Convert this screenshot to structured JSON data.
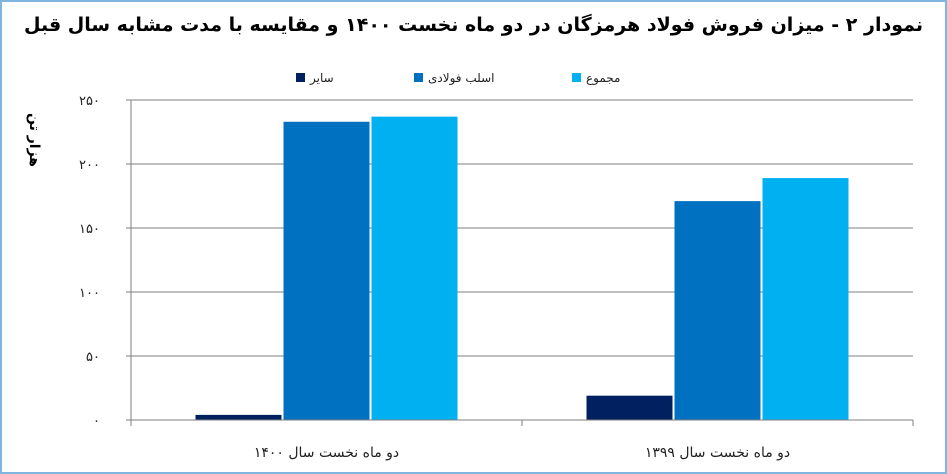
{
  "chart_data": {
    "type": "bar",
    "title": "نمودار ۲ - میزان فروش فولاد هرمزگان در دو ماه نخست ۱۴۰۰ و مقایسه با مدت مشابه سال قبل",
    "ylabel": "هزار تن",
    "xlabel": "",
    "ylim": [
      0,
      250
    ],
    "yticks": [
      0,
      50,
      100,
      150,
      200,
      250
    ],
    "ytick_labels": [
      "۰",
      "۵۰",
      "۱۰۰",
      "۱۵۰",
      "۲۰۰",
      "۲۵۰"
    ],
    "categories": [
      "دو ماه نخست سال ۱۴۰۰",
      "دو ماه نخست سال ۱۳۹۹"
    ],
    "series": [
      {
        "name": "سایر",
        "color": "#002060",
        "values": [
          4,
          19
        ]
      },
      {
        "name": "اسلب فولادی",
        "color": "#0070c0",
        "values": [
          233,
          171
        ]
      },
      {
        "name": "مجموع",
        "color": "#00b0f0",
        "values": [
          237,
          189
        ]
      }
    ],
    "grid": true,
    "legend_position": "top"
  }
}
